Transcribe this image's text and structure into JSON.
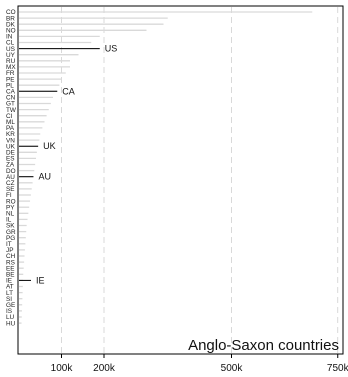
{
  "chart_data": {
    "type": "bar",
    "orientation": "horizontal",
    "title": "Anglo-Saxon countries",
    "title_position": "bottom-right",
    "xlabel": "",
    "ylabel": "",
    "xlim": [
      0,
      760000
    ],
    "xticks": [
      {
        "value": 100000,
        "label": "100k"
      },
      {
        "value": 200000,
        "label": "200k"
      },
      {
        "value": 500000,
        "label": "500k"
      },
      {
        "value": 750000,
        "label": "750k"
      }
    ],
    "grid": "vertical dashed",
    "categories": [
      "CO",
      "BR",
      "DK",
      "NO",
      "IN",
      "CL",
      "US",
      "UY",
      "RU",
      "MX",
      "FR",
      "PE",
      "PL",
      "CA",
      "CN",
      "GT",
      "TW",
      "CI",
      "ML",
      "PA",
      "KR",
      "VN",
      "UK",
      "DE",
      "ES",
      "ZA",
      "DO",
      "AU",
      "CZ",
      "SE",
      "FI",
      "RO",
      "PY",
      "NL",
      "IL",
      "SK",
      "GR",
      "PG",
      "IT",
      "JP",
      "CH",
      "RS",
      "EE",
      "BE",
      "IE",
      "AT",
      "LT",
      "SI",
      "GE",
      "IS",
      "LU",
      "HU"
    ],
    "values": [
      690000,
      350000,
      340000,
      300000,
      190000,
      170000,
      190000,
      140000,
      120000,
      120000,
      110000,
      100000,
      95000,
      90000,
      80000,
      75000,
      70000,
      65000,
      60000,
      55000,
      50000,
      48000,
      45000,
      42000,
      40000,
      38000,
      36000,
      34000,
      32000,
      30000,
      28000,
      26000,
      24000,
      22000,
      20000,
      18000,
      17000,
      16000,
      15000,
      14000,
      13000,
      12000,
      11000,
      10000,
      9500,
      9000,
      8500,
      8000,
      7500,
      7000,
      6500,
      6000
    ],
    "highlighted": [
      {
        "category": "US",
        "label": "US"
      },
      {
        "category": "CA",
        "label": "CA"
      },
      {
        "category": "UK",
        "label": "UK"
      },
      {
        "category": "AU",
        "label": "AU"
      },
      {
        "category": "IE",
        "label": "IE"
      }
    ],
    "colors": {
      "bar": "#d9d9d9",
      "highlight": "#000000",
      "grid": "#d0d0d0",
      "frame": "#000000",
      "text": "#111111"
    }
  }
}
